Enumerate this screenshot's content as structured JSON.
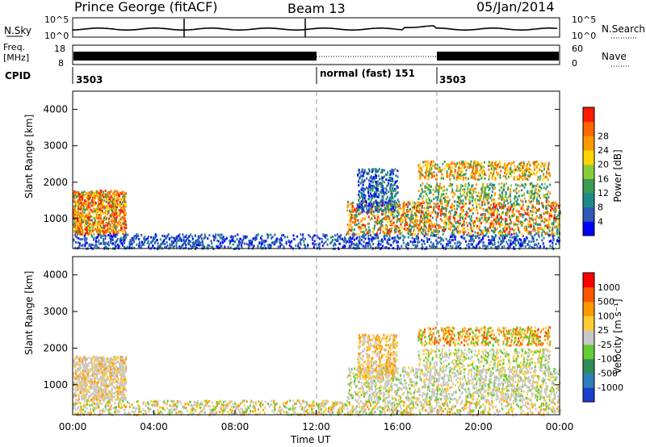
{
  "header": {
    "station": "Prince George (fitACF)",
    "beam": "Beam 13",
    "date": "05/Jan/2014"
  },
  "noise_panel": {
    "left_label": "N.Sky",
    "right_label": "N.Search",
    "y_ticks": [
      "10^5",
      "10^0"
    ]
  },
  "freq_panel": {
    "left_label_line1": "Freq.",
    "left_label_line2": "[MHz]",
    "left_ticks": [
      "18",
      "8"
    ],
    "right_label": "Nave",
    "right_ticks": [
      "60",
      "0"
    ]
  },
  "cpid": {
    "label": "CPID",
    "segments": [
      {
        "text": "3503",
        "start_hour": 0
      },
      {
        "text": "normal (fast) 151",
        "start_hour": 12
      },
      {
        "text": "3503",
        "start_hour": 18
      }
    ]
  },
  "chart_data": [
    {
      "type": "heatmap",
      "title": "",
      "ylabel": "Slant Range [km]",
      "ylim": [
        180,
        4500
      ],
      "y_ticks": [
        1000,
        2000,
        3000,
        4000
      ],
      "xlabel": "",
      "x_ticks": [
        "00:00",
        "04:00",
        "08:00",
        "12:00",
        "16:00",
        "20:00",
        "00:00"
      ],
      "xlim_hours": [
        0,
        24
      ],
      "colorbar": {
        "label": "Power [dB]",
        "ticks": [
          "4",
          "8",
          "12",
          "16",
          "20",
          "24",
          "28"
        ],
        "colors": [
          "#0000ff",
          "#2c58b8",
          "#1f8a8a",
          "#3a9c55",
          "#8ccc3a",
          "#ffd700",
          "#ff9900",
          "#ff6600",
          "#ff1a00"
        ]
      }
    },
    {
      "type": "heatmap",
      "title": "",
      "ylabel": "Slant Range [km]",
      "ylim": [
        180,
        4500
      ],
      "y_ticks": [
        1000,
        2000,
        3000,
        4000
      ],
      "xlabel": "Time UT",
      "x_ticks": [
        "00:00",
        "04:00",
        "08:00",
        "12:00",
        "16:00",
        "20:00",
        "00:00"
      ],
      "xlim_hours": [
        0,
        24
      ],
      "colorbar": {
        "label": "Velocity [m s⁻¹]",
        "ticks": [
          "1000",
          "500",
          "100",
          "25",
          "-25",
          "-100",
          "-500",
          "-1000"
        ],
        "colors": [
          "#1a3fcc",
          "#2c7fb8",
          "#2e8b57",
          "#66cc33",
          "#c8c8c8",
          "#ffcc33",
          "#ff9900",
          "#ff5500",
          "#ff0000"
        ]
      }
    }
  ]
}
